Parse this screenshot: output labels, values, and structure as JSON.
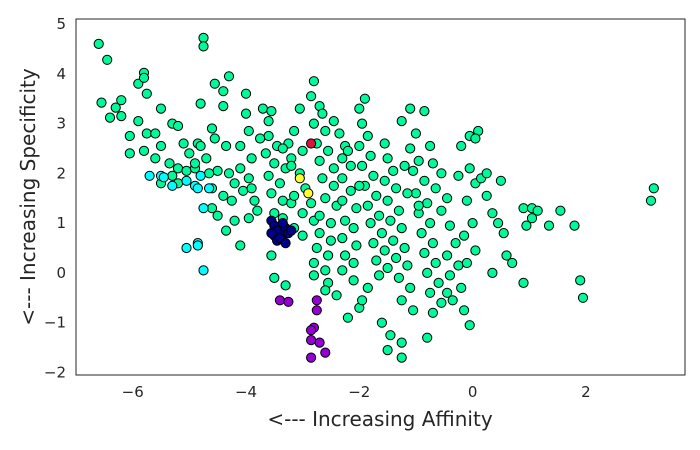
{
  "chart_data": {
    "type": "scatter",
    "title": "",
    "xlabel": "<--- Increasing Affinity",
    "ylabel": "<--- Increasing Specificity",
    "xlim": [
      -7.0,
      3.75
    ],
    "ylim": [
      -2.05,
      5.1
    ],
    "xticks": [
      -6,
      -4,
      -2,
      0,
      2
    ],
    "xtick_labels": [
      "−6",
      "−4",
      "−2",
      "0",
      "2"
    ],
    "yticks": [
      -2,
      -1,
      0,
      1,
      2,
      3,
      4,
      5
    ],
    "ytick_labels": [
      "−2",
      "−1",
      "0",
      "1",
      "2",
      "3",
      "4",
      "5"
    ],
    "grid": false,
    "legend": "none",
    "marker_edge_color": "#000000",
    "series": [
      {
        "color": "#00fa9a",
        "points": [
          [
            -6.6,
            4.6
          ],
          [
            -6.45,
            4.28
          ],
          [
            -6.55,
            3.42
          ],
          [
            -6.3,
            3.32
          ],
          [
            -6.2,
            3.47
          ],
          [
            -6.2,
            3.15
          ],
          [
            -6.4,
            3.12
          ],
          [
            -5.9,
            3.8
          ],
          [
            -5.8,
            4.02
          ],
          [
            -5.8,
            3.92
          ],
          [
            -5.75,
            3.6
          ],
          [
            -5.9,
            3.05
          ],
          [
            -5.75,
            2.8
          ],
          [
            -6.05,
            2.75
          ],
          [
            -5.8,
            2.45
          ],
          [
            -6.05,
            2.4
          ],
          [
            -5.6,
            2.8
          ],
          [
            -5.5,
            2.55
          ],
          [
            -5.5,
            3.3
          ],
          [
            -5.3,
            3.0
          ],
          [
            -5.6,
            2.3
          ],
          [
            -5.35,
            2.2
          ],
          [
            -5.2,
            2.95
          ],
          [
            -5.1,
            2.6
          ],
          [
            -5.0,
            2.4
          ],
          [
            -5.2,
            2.1
          ],
          [
            -5.05,
            2.05
          ],
          [
            -5.2,
            1.8
          ],
          [
            -4.9,
            2.1
          ],
          [
            -4.85,
            2.6
          ],
          [
            -4.8,
            3.4
          ],
          [
            -4.75,
            4.72
          ],
          [
            -4.75,
            4.55
          ],
          [
            -4.55,
            3.8
          ],
          [
            -4.4,
            3.65
          ],
          [
            -4.4,
            3.35
          ],
          [
            -4.3,
            3.95
          ],
          [
            -4.6,
            2.9
          ],
          [
            -4.55,
            2.7
          ],
          [
            -4.35,
            2.55
          ],
          [
            -4.7,
            2.3
          ],
          [
            -4.5,
            2.05
          ],
          [
            -4.3,
            2.0
          ],
          [
            -4.6,
            1.7
          ],
          [
            -4.4,
            1.55
          ],
          [
            -4.25,
            1.45
          ],
          [
            -4.6,
            1.3
          ],
          [
            -4.5,
            1.15
          ],
          [
            -4.2,
            1.05
          ],
          [
            -4.35,
            0.85
          ],
          [
            -4.1,
            0.55
          ],
          [
            -4.0,
            3.6
          ],
          [
            -4.0,
            3.2
          ],
          [
            -3.95,
            2.85
          ],
          [
            -4.1,
            2.55
          ],
          [
            -3.9,
            2.3
          ],
          [
            -4.1,
            2.1
          ],
          [
            -3.95,
            1.9
          ],
          [
            -4.05,
            1.65
          ],
          [
            -3.85,
            1.45
          ],
          [
            -3.8,
            1.25
          ],
          [
            -3.95,
            1.1
          ],
          [
            -3.7,
            3.3
          ],
          [
            -3.55,
            3.25
          ],
          [
            -3.6,
            3.05
          ],
          [
            -3.6,
            2.75
          ],
          [
            -3.45,
            2.55
          ],
          [
            -3.65,
            2.4
          ],
          [
            -3.5,
            2.2
          ],
          [
            -3.3,
            2.1
          ],
          [
            -3.6,
            1.95
          ],
          [
            -3.4,
            1.8
          ],
          [
            -3.55,
            1.6
          ],
          [
            -3.35,
            1.45
          ],
          [
            -3.2,
            1.4
          ],
          [
            -3.5,
            1.2
          ],
          [
            -3.35,
            1.1
          ],
          [
            -3.15,
            2.85
          ],
          [
            -3.05,
            3.3
          ],
          [
            -3.25,
            2.6
          ],
          [
            -3.0,
            2.45
          ],
          [
            -3.2,
            2.3
          ],
          [
            -3.05,
            2.0
          ],
          [
            -2.95,
            1.7
          ],
          [
            -3.15,
            1.55
          ],
          [
            -2.85,
            1.4
          ],
          [
            -3.0,
            1.2
          ],
          [
            -2.8,
            1.05
          ],
          [
            -3.15,
            0.9
          ],
          [
            -3.0,
            0.75
          ],
          [
            -2.8,
            3.85
          ],
          [
            -2.85,
            3.55
          ],
          [
            -2.7,
            3.35
          ],
          [
            -2.65,
            3.2
          ],
          [
            -2.8,
            3.0
          ],
          [
            -2.6,
            2.85
          ],
          [
            -2.75,
            2.6
          ],
          [
            -2.55,
            2.45
          ],
          [
            -2.7,
            2.25
          ],
          [
            -2.45,
            2.1
          ],
          [
            -2.65,
            1.9
          ],
          [
            -2.45,
            1.75
          ],
          [
            -2.6,
            1.5
          ],
          [
            -2.4,
            1.35
          ],
          [
            -2.7,
            1.15
          ],
          [
            -2.5,
            1.0
          ],
          [
            -2.7,
            0.8
          ],
          [
            -2.5,
            0.65
          ],
          [
            -2.75,
            0.5
          ],
          [
            -2.55,
            0.35
          ],
          [
            -2.8,
            0.2
          ],
          [
            -2.6,
            0.05
          ],
          [
            -2.8,
            -0.05
          ],
          [
            -2.55,
            -0.2
          ],
          [
            -2.6,
            -0.35
          ],
          [
            -2.4,
            -0.45
          ],
          [
            -2.45,
            3.05
          ],
          [
            -2.35,
            2.8
          ],
          [
            -2.25,
            2.55
          ],
          [
            -2.3,
            2.3
          ],
          [
            -2.15,
            2.15
          ],
          [
            -2.3,
            1.9
          ],
          [
            -2.15,
            1.65
          ],
          [
            -2.3,
            1.45
          ],
          [
            -2.05,
            1.3
          ],
          [
            -2.25,
            1.05
          ],
          [
            -2.1,
            0.9
          ],
          [
            -2.3,
            0.7
          ],
          [
            -2.05,
            0.55
          ],
          [
            -2.25,
            0.35
          ],
          [
            -2.1,
            0.2
          ],
          [
            -2.3,
            0.05
          ],
          [
            -2.1,
            -0.15
          ],
          [
            -2.0,
            3.3
          ],
          [
            -1.9,
            3.5
          ],
          [
            -1.95,
            3.0
          ],
          [
            -1.85,
            2.75
          ],
          [
            -2.0,
            2.55
          ],
          [
            -1.8,
            2.35
          ],
          [
            -1.95,
            2.15
          ],
          [
            -1.75,
            1.95
          ],
          [
            -1.9,
            1.75
          ],
          [
            -1.7,
            1.55
          ],
          [
            -1.85,
            1.35
          ],
          [
            -1.65,
            1.15
          ],
          [
            -1.8,
            1.0
          ],
          [
            -1.6,
            0.8
          ],
          [
            -1.75,
            0.6
          ],
          [
            -1.55,
            0.45
          ],
          [
            -1.7,
            0.25
          ],
          [
            -1.5,
            0.1
          ],
          [
            -1.65,
            -0.05
          ],
          [
            -1.85,
            -0.3
          ],
          [
            -1.55,
            2.6
          ],
          [
            -1.5,
            2.3
          ],
          [
            -1.4,
            2.05
          ],
          [
            -1.55,
            1.85
          ],
          [
            -1.35,
            1.7
          ],
          [
            -1.5,
            1.45
          ],
          [
            -1.3,
            1.25
          ],
          [
            -1.45,
            1.05
          ],
          [
            -1.25,
            0.9
          ],
          [
            -1.4,
            0.65
          ],
          [
            -1.2,
            0.5
          ],
          [
            -1.35,
            0.3
          ],
          [
            -1.15,
            0.15
          ],
          [
            -1.3,
            -0.1
          ],
          [
            -1.1,
            -0.3
          ],
          [
            -1.25,
            -0.55
          ],
          [
            -1.05,
            -0.75
          ],
          [
            -1.6,
            -1.0
          ],
          [
            -1.45,
            -1.25
          ],
          [
            -1.25,
            -1.4
          ],
          [
            -1.5,
            -1.55
          ],
          [
            -1.25,
            -1.7
          ],
          [
            -1.1,
            3.3
          ],
          [
            -1.25,
            3.05
          ],
          [
            -1.0,
            2.8
          ],
          [
            -1.1,
            2.5
          ],
          [
            -0.95,
            2.25
          ],
          [
            -1.05,
            2.05
          ],
          [
            -0.85,
            1.85
          ],
          [
            -1.0,
            1.6
          ],
          [
            -0.8,
            1.4
          ],
          [
            -0.95,
            1.2
          ],
          [
            -0.75,
            1.0
          ],
          [
            -0.9,
            0.8
          ],
          [
            -0.7,
            0.6
          ],
          [
            -0.85,
            0.4
          ],
          [
            -0.65,
            0.2
          ],
          [
            -0.8,
            0.0
          ],
          [
            -0.6,
            -0.2
          ],
          [
            -0.75,
            -0.4
          ],
          [
            -0.55,
            -0.6
          ],
          [
            -0.7,
            -0.8
          ],
          [
            -0.8,
            -1.3
          ],
          [
            -0.85,
            3.25
          ],
          [
            -0.75,
            2.55
          ],
          [
            -0.7,
            2.2
          ],
          [
            -0.55,
            2.0
          ],
          [
            -0.65,
            1.7
          ],
          [
            -0.45,
            1.5
          ],
          [
            -0.55,
            1.25
          ],
          [
            -0.4,
            0.95
          ],
          [
            -0.3,
            0.6
          ],
          [
            -0.45,
            0.35
          ],
          [
            -0.25,
            0.15
          ],
          [
            -0.4,
            -0.05
          ],
          [
            -0.2,
            -0.3
          ],
          [
            -0.35,
            -0.55
          ],
          [
            -0.15,
            -0.75
          ],
          [
            -0.05,
            -1.05
          ],
          [
            -0.2,
            2.55
          ],
          [
            -0.05,
            2.1
          ],
          [
            -0.25,
            1.95
          ],
          [
            0.05,
            1.8
          ],
          [
            -0.1,
            1.45
          ],
          [
            0.0,
            1.0
          ],
          [
            -0.15,
            0.75
          ],
          [
            0.05,
            0.45
          ],
          [
            -0.1,
            0.2
          ],
          [
            -0.05,
            2.75
          ],
          [
            0.1,
            2.85
          ],
          [
            0.05,
            2.7
          ],
          [
            0.15,
            1.9
          ],
          [
            0.25,
            1.55
          ],
          [
            0.25,
            2.0
          ],
          [
            0.35,
            1.2
          ],
          [
            0.5,
            1.85
          ],
          [
            0.45,
            1.0
          ],
          [
            0.55,
            0.8
          ],
          [
            0.6,
            0.35
          ],
          [
            0.7,
            0.2
          ],
          [
            0.9,
            1.3
          ],
          [
            1.05,
            1.3
          ],
          [
            1.15,
            1.25
          ],
          [
            0.95,
            0.95
          ],
          [
            1.05,
            1.1
          ],
          [
            0.9,
            -0.2
          ],
          [
            1.35,
            0.95
          ],
          [
            1.55,
            1.25
          ],
          [
            1.8,
            0.95
          ],
          [
            1.9,
            -0.15
          ],
          [
            1.95,
            -0.5
          ],
          [
            3.15,
            1.45
          ],
          [
            3.2,
            1.7
          ],
          [
            -0.45,
            -0.4
          ],
          [
            0.35,
            0.0
          ],
          [
            -2.0,
            -0.7
          ],
          [
            -2.2,
            -0.9
          ],
          [
            -1.95,
            -0.55
          ],
          [
            -3.55,
            0.35
          ],
          [
            -3.5,
            -0.1
          ],
          [
            -3.3,
            -0.25
          ],
          [
            -3.2,
            2.15
          ],
          [
            -3.35,
            2.5
          ],
          [
            -3.75,
            2.7
          ],
          [
            -3.9,
            1.7
          ],
          [
            -4.8,
            2.55
          ],
          [
            -4.9,
            2.2
          ],
          [
            -5.3,
            1.95
          ],
          [
            -5.5,
            1.8
          ],
          [
            -4.65,
            2.0
          ],
          [
            -4.2,
            1.8
          ],
          [
            -2.2,
            2.45
          ],
          [
            -2.0,
            1.75
          ],
          [
            -1.2,
            2.15
          ],
          [
            -1.15,
            1.6
          ],
          [
            -0.95,
            1.35
          ]
        ]
      },
      {
        "color": "#00ffff",
        "points": [
          [
            -5.7,
            1.95
          ],
          [
            -5.5,
            1.95
          ],
          [
            -5.45,
            1.92
          ],
          [
            -5.3,
            1.75
          ],
          [
            -5.05,
            1.85
          ],
          [
            -4.9,
            1.75
          ],
          [
            -4.85,
            1.7
          ],
          [
            -4.8,
            1.95
          ],
          [
            -4.75,
            1.3
          ],
          [
            -4.65,
            1.7
          ],
          [
            -4.85,
            0.6
          ],
          [
            -4.85,
            0.55
          ],
          [
            -5.05,
            0.5
          ],
          [
            -4.75,
            0.05
          ]
        ]
      },
      {
        "color": "#00008b",
        "points": [
          [
            -3.55,
            1.05
          ],
          [
            -3.5,
            0.95
          ],
          [
            -3.45,
            0.85
          ],
          [
            -3.5,
            0.75
          ],
          [
            -3.45,
            0.65
          ],
          [
            -3.35,
            0.75
          ],
          [
            -3.3,
            0.9
          ],
          [
            -3.25,
            0.8
          ],
          [
            -3.2,
            0.85
          ],
          [
            -3.35,
            1.0
          ],
          [
            -3.4,
            0.7
          ],
          [
            -3.3,
            0.6
          ],
          [
            -3.55,
            0.8
          ]
        ]
      },
      {
        "color": "#9400d3",
        "points": [
          [
            -3.4,
            -0.55
          ],
          [
            -3.25,
            -0.58
          ],
          [
            -2.75,
            -0.55
          ],
          [
            -2.75,
            -0.75
          ],
          [
            -2.8,
            -1.1
          ],
          [
            -2.85,
            -1.15
          ],
          [
            -2.7,
            -1.4
          ],
          [
            -2.85,
            -1.35
          ],
          [
            -2.6,
            -1.6
          ],
          [
            -2.85,
            -1.7
          ]
        ]
      },
      {
        "color": "#dc143c",
        "points": [
          [
            -2.85,
            2.6
          ]
        ]
      },
      {
        "color": "#ffff33",
        "points": [
          [
            -3.05,
            1.9
          ],
          [
            -2.9,
            1.6
          ]
        ]
      }
    ]
  }
}
